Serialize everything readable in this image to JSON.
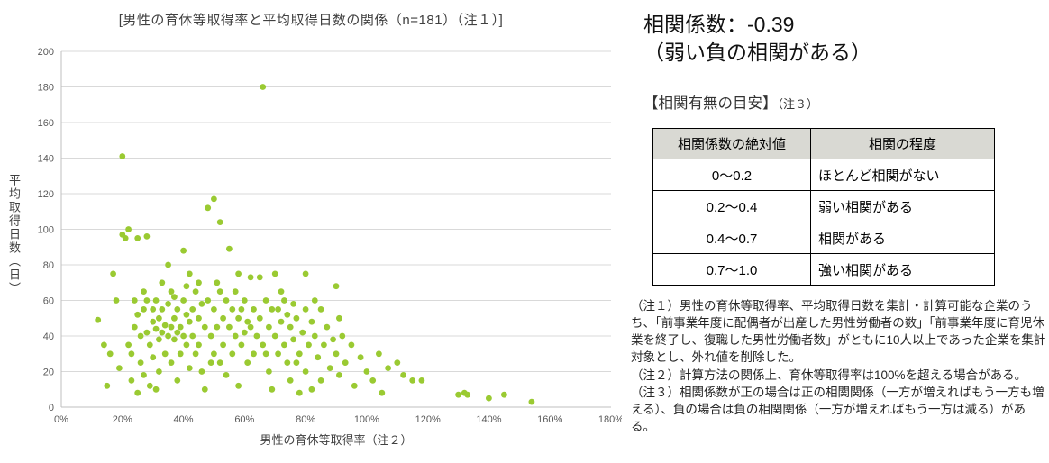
{
  "chart_data": {
    "type": "scatter",
    "title": "[男性の育休等取得率と平均取得日数の関係（n=181）（注１）]",
    "xlabel": "男性の育休等取得率（注２）",
    "ylabel": "平均取得日数（日）",
    "xlim": [
      0,
      180
    ],
    "ylim": [
      0,
      200
    ],
    "xticks": [
      0,
      20,
      40,
      60,
      80,
      100,
      120,
      140,
      160,
      180
    ],
    "xtick_labels": [
      "0%",
      "20%",
      "40%",
      "60%",
      "80%",
      "100%",
      "120%",
      "140%",
      "160%",
      "180%"
    ],
    "yticks": [
      0,
      20,
      40,
      60,
      80,
      100,
      120,
      140,
      160,
      180,
      200
    ],
    "grid": "horizontal",
    "legend": "none",
    "point_color": "#9aca32",
    "n": 181,
    "points": [
      [
        12,
        49
      ],
      [
        14,
        35
      ],
      [
        15,
        12
      ],
      [
        16,
        30
      ],
      [
        17,
        75
      ],
      [
        18,
        60
      ],
      [
        19,
        22
      ],
      [
        20,
        141
      ],
      [
        20,
        97
      ],
      [
        21,
        95
      ],
      [
        22,
        100
      ],
      [
        22,
        35
      ],
      [
        23,
        30
      ],
      [
        23,
        15
      ],
      [
        24,
        60
      ],
      [
        24,
        45
      ],
      [
        25,
        95
      ],
      [
        25,
        52
      ],
      [
        26,
        40
      ],
      [
        26,
        25
      ],
      [
        27,
        55
      ],
      [
        27,
        18
      ],
      [
        28,
        96
      ],
      [
        28,
        60
      ],
      [
        28,
        42
      ],
      [
        29,
        35
      ],
      [
        29,
        12
      ],
      [
        30,
        55
      ],
      [
        30,
        48
      ],
      [
        30,
        28
      ],
      [
        31,
        60
      ],
      [
        31,
        44
      ],
      [
        32,
        50
      ],
      [
        32,
        38
      ],
      [
        32,
        20
      ],
      [
        33,
        55
      ],
      [
        33,
        42
      ],
      [
        34,
        46
      ],
      [
        34,
        30
      ],
      [
        35,
        80
      ],
      [
        35,
        58
      ],
      [
        35,
        40
      ],
      [
        36,
        65
      ],
      [
        36,
        45
      ],
      [
        36,
        25
      ],
      [
        37,
        50
      ],
      [
        37,
        38
      ],
      [
        38,
        55
      ],
      [
        38,
        42
      ],
      [
        38,
        15
      ],
      [
        39,
        45
      ],
      [
        39,
        30
      ],
      [
        40,
        88
      ],
      [
        40,
        60
      ],
      [
        40,
        40
      ],
      [
        41,
        52
      ],
      [
        41,
        35
      ],
      [
        42,
        75
      ],
      [
        42,
        48
      ],
      [
        42,
        22
      ],
      [
        43,
        55
      ],
      [
        43,
        40
      ],
      [
        44,
        65
      ],
      [
        44,
        30
      ],
      [
        45,
        50
      ],
      [
        45,
        35
      ],
      [
        46,
        58
      ],
      [
        46,
        20
      ],
      [
        47,
        45
      ],
      [
        47,
        10
      ],
      [
        48,
        112
      ],
      [
        48,
        60
      ],
      [
        49,
        40
      ],
      [
        50,
        117
      ],
      [
        50,
        55
      ],
      [
        50,
        30
      ],
      [
        51,
        45
      ],
      [
        52,
        104
      ],
      [
        52,
        65
      ],
      [
        52,
        25
      ],
      [
        53,
        50
      ],
      [
        53,
        35
      ],
      [
        54,
        60
      ],
      [
        54,
        18
      ],
      [
        55,
        89
      ],
      [
        55,
        45
      ],
      [
        56,
        55
      ],
      [
        56,
        30
      ],
      [
        57,
        40
      ],
      [
        58,
        75
      ],
      [
        58,
        50
      ],
      [
        58,
        12
      ],
      [
        59,
        35
      ],
      [
        60,
        60
      ],
      [
        60,
        42
      ],
      [
        61,
        25
      ],
      [
        62,
        73
      ],
      [
        62,
        45
      ],
      [
        63,
        55
      ],
      [
        63,
        30
      ],
      [
        64,
        40
      ],
      [
        65,
        73
      ],
      [
        65,
        50
      ],
      [
        66,
        180
      ],
      [
        66,
        35
      ],
      [
        67,
        60
      ],
      [
        68,
        45
      ],
      [
        68,
        20
      ],
      [
        69,
        55
      ],
      [
        70,
        75
      ],
      [
        70,
        40
      ],
      [
        71,
        30
      ],
      [
        72,
        65
      ],
      [
        72,
        48
      ],
      [
        73,
        35
      ],
      [
        74,
        52
      ],
      [
        74,
        25
      ],
      [
        75,
        45
      ],
      [
        75,
        15
      ],
      [
        76,
        58
      ],
      [
        76,
        38
      ],
      [
        77,
        50
      ],
      [
        78,
        30
      ],
      [
        78,
        8
      ],
      [
        79,
        42
      ],
      [
        80,
        75
      ],
      [
        80,
        55
      ],
      [
        80,
        20
      ],
      [
        81,
        35
      ],
      [
        82,
        48
      ],
      [
        82,
        10
      ],
      [
        83,
        40
      ],
      [
        84,
        28
      ],
      [
        85,
        55
      ],
      [
        85,
        15
      ],
      [
        86,
        35
      ],
      [
        87,
        45
      ],
      [
        88,
        22
      ],
      [
        89,
        38
      ],
      [
        90,
        68
      ],
      [
        90,
        30
      ],
      [
        91,
        18
      ],
      [
        92,
        40
      ],
      [
        93,
        25
      ],
      [
        95,
        35
      ],
      [
        96,
        12
      ],
      [
        98,
        28
      ],
      [
        100,
        20
      ],
      [
        102,
        15
      ],
      [
        104,
        30
      ],
      [
        105,
        8
      ],
      [
        107,
        22
      ],
      [
        110,
        25
      ],
      [
        112,
        18
      ],
      [
        115,
        15
      ],
      [
        118,
        15
      ],
      [
        130,
        7
      ],
      [
        132,
        8
      ],
      [
        133,
        7
      ],
      [
        140,
        5
      ],
      [
        145,
        7
      ],
      [
        154,
        3
      ],
      [
        25,
        8
      ],
      [
        27,
        65
      ],
      [
        31,
        10
      ],
      [
        33,
        70
      ],
      [
        37,
        62
      ],
      [
        41,
        68
      ],
      [
        45,
        70
      ],
      [
        49,
        25
      ],
      [
        51,
        70
      ],
      [
        57,
        65
      ],
      [
        59,
        55
      ],
      [
        61,
        48
      ],
      [
        67,
        30
      ],
      [
        69,
        10
      ],
      [
        71,
        55
      ],
      [
        73,
        60
      ],
      [
        77,
        25
      ],
      [
        83,
        60
      ],
      [
        91,
        50
      ]
    ]
  },
  "right_panel": {
    "correlation_title": "相関係数：-0.39",
    "correlation_subtitle": "（弱い負の相関がある）",
    "criteria_heading": "【相関有無の目安】",
    "criteria_heading_note": "（注３）",
    "table": {
      "headers": [
        "相関係数の絶対値",
        "相関の程度"
      ],
      "rows": [
        [
          "0〜0.2",
          "ほとんど相関がない"
        ],
        [
          "0.2〜0.4",
          "弱い相関がある"
        ],
        [
          "0.4〜0.7",
          "相関がある"
        ],
        [
          "0.7〜1.0",
          "強い相関がある"
        ]
      ]
    },
    "notes": [
      "（注１）男性の育休等取得率、平均取得日数を集計・計算可能な企業のうち、「前事業年度に配偶者が出産した男性労働者の数」「前事業年度に育児休業を終了し、復職した男性労働者数」がともに10人以上であった企業を集計対象とし、外れ値を削除した。",
      "（注２）計算方法の関係上、育休等取得率は100%を超える場合がある。",
      "（注３）相関係数が正の場合は正の相関関係（一方が増えればもう一方も増える）、負の場合は負の相関関係（一方が増えればもう一方は減る）がある。"
    ]
  }
}
